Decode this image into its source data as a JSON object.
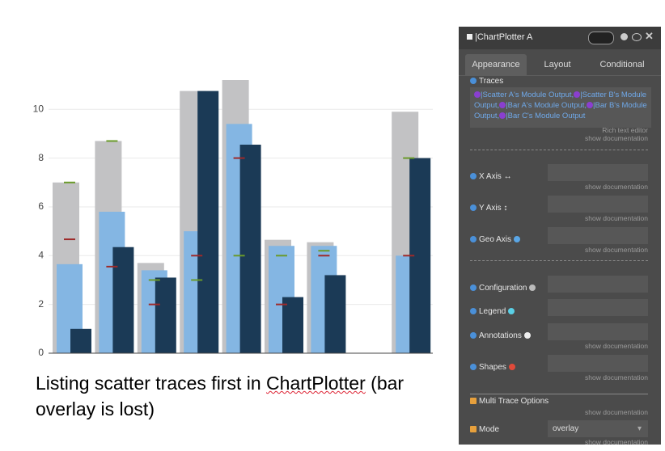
{
  "chart_data": {
    "type": "bar",
    "barmode": "overlay",
    "categories": [
      null,
      null,
      null,
      null,
      null,
      null,
      null,
      null,
      null
    ],
    "series": [
      {
        "type": "bar",
        "color": "#c2c2c4",
        "values": [
          7.0,
          8.7,
          3.7,
          10.75,
          11.2,
          4.65,
          4.55,
          null,
          9.9
        ]
      },
      {
        "type": "bar",
        "color": "#84b6e3",
        "values": [
          3.65,
          5.8,
          3.4,
          5.0,
          9.4,
          4.4,
          4.4,
          null,
          4.0
        ]
      },
      {
        "type": "bar",
        "color": "#1b3a56",
        "values": [
          1.0,
          4.35,
          3.1,
          10.75,
          8.55,
          2.3,
          3.2,
          null,
          8.0
        ]
      },
      {
        "type": "scatter",
        "color": "#9e2a2a",
        "values": [
          4.67,
          3.55,
          2.0,
          4.0,
          8.0,
          2.0,
          4.0,
          null,
          4.0
        ]
      },
      {
        "type": "scatter",
        "color": "#6a9a2a",
        "values": [
          7.0,
          8.7,
          3.0,
          3.0,
          4.0,
          4.0,
          4.2,
          null,
          8.0
        ]
      }
    ],
    "ylim": [
      0,
      11.3
    ],
    "yticks": [
      0,
      2,
      4,
      6,
      8,
      10
    ],
    "grid": true
  },
  "caption": [
    "Listing scatter traces first in ",
    "ChartPlotter",
    " (bar overlay is lost)"
  ],
  "panel": {
    "title": "|ChartPlotter A",
    "tabs": [
      "Appearance",
      "Layout",
      "Conditional"
    ],
    "traces": {
      "label": "Traces",
      "items": [
        "|Scatter A's Module Output,",
        "|Scatter B's Module Output,",
        "|Bar A's Module Output,",
        "|Bar B's Module Output,",
        "|Bar C's Module Output"
      ],
      "hint": "Rich text editor",
      "doc": "show documentation"
    },
    "fields": [
      {
        "label": "X Axis ↔",
        "doc": "show documentation"
      },
      {
        "label": "Y Axis ↕",
        "doc": "show documentation"
      },
      {
        "label": "Geo Axis",
        "doc": "show documentation"
      },
      {
        "label": "Configuration"
      },
      {
        "label": "Legend"
      },
      {
        "label": "Annotations",
        "doc": "show documentation"
      },
      {
        "label": "Shapes",
        "doc": "show documentation"
      }
    ],
    "multi": {
      "label": "Multi Trace Options",
      "doc": "show documentation"
    },
    "mode": {
      "label": "Mode",
      "value": "overlay",
      "doc": "show documentation"
    }
  }
}
